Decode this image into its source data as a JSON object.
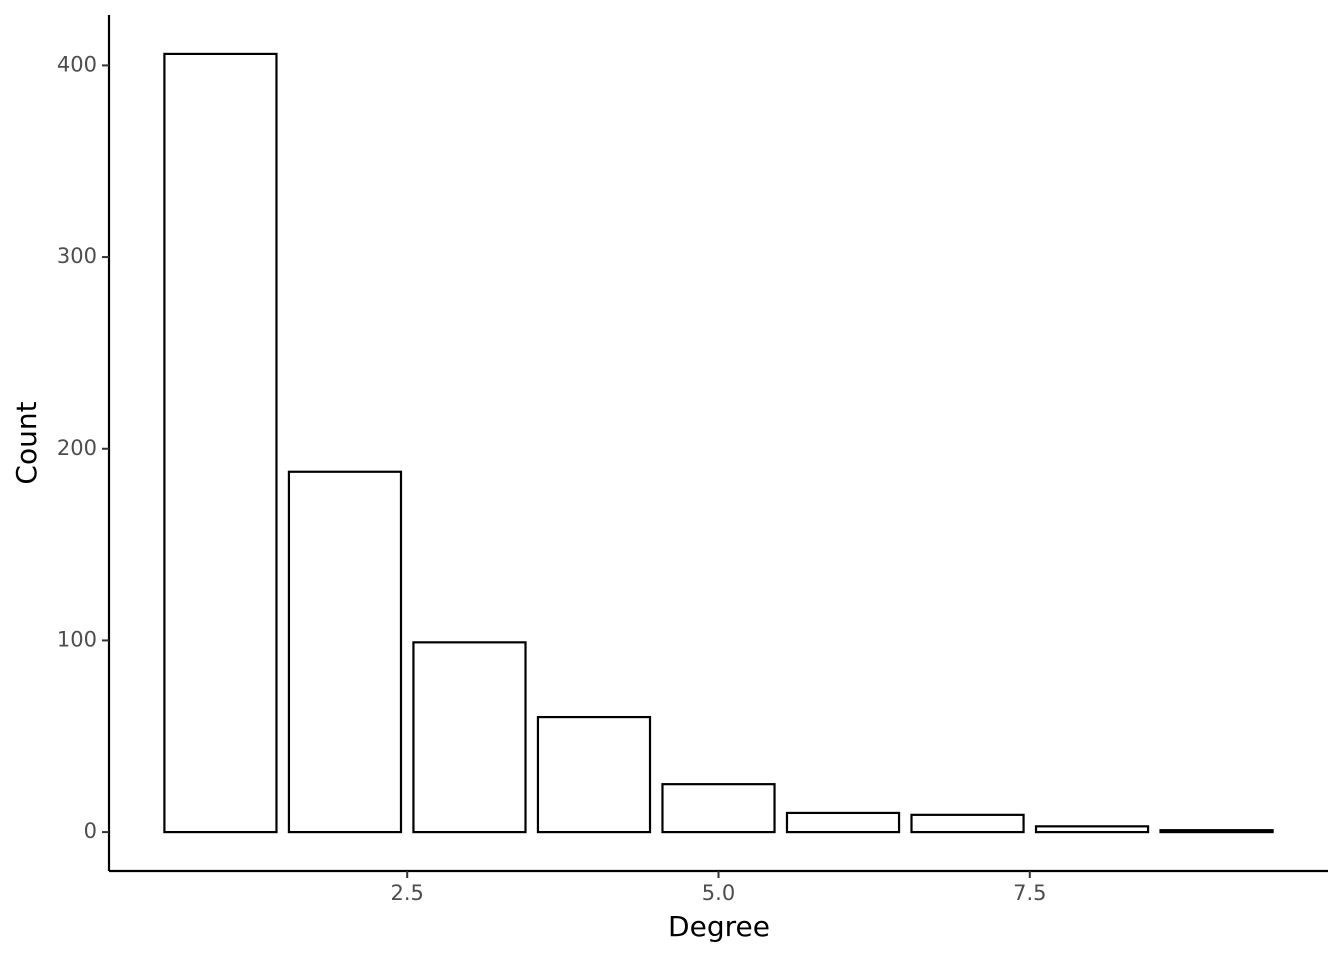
{
  "chart_data": {
    "type": "bar",
    "x_label": "Degree",
    "y_label": "Count",
    "x": [
      1,
      2,
      3,
      4,
      5,
      6,
      7,
      8,
      9
    ],
    "values": [
      406,
      188,
      99,
      60,
      25,
      10,
      9,
      3,
      1
    ],
    "color": "#ffffff",
    "edge_color": "#000000",
    "xlim": [
      0.105,
      9.895
    ],
    "xticks": [
      2.5,
      {
        "value": 5,
        "label": "5.0"
      },
      7.5
    ],
    "ylim": [
      -20.3,
      426.3
    ],
    "yticks": [
      0,
      100,
      200,
      300,
      400
    ],
    "grid": false
  }
}
